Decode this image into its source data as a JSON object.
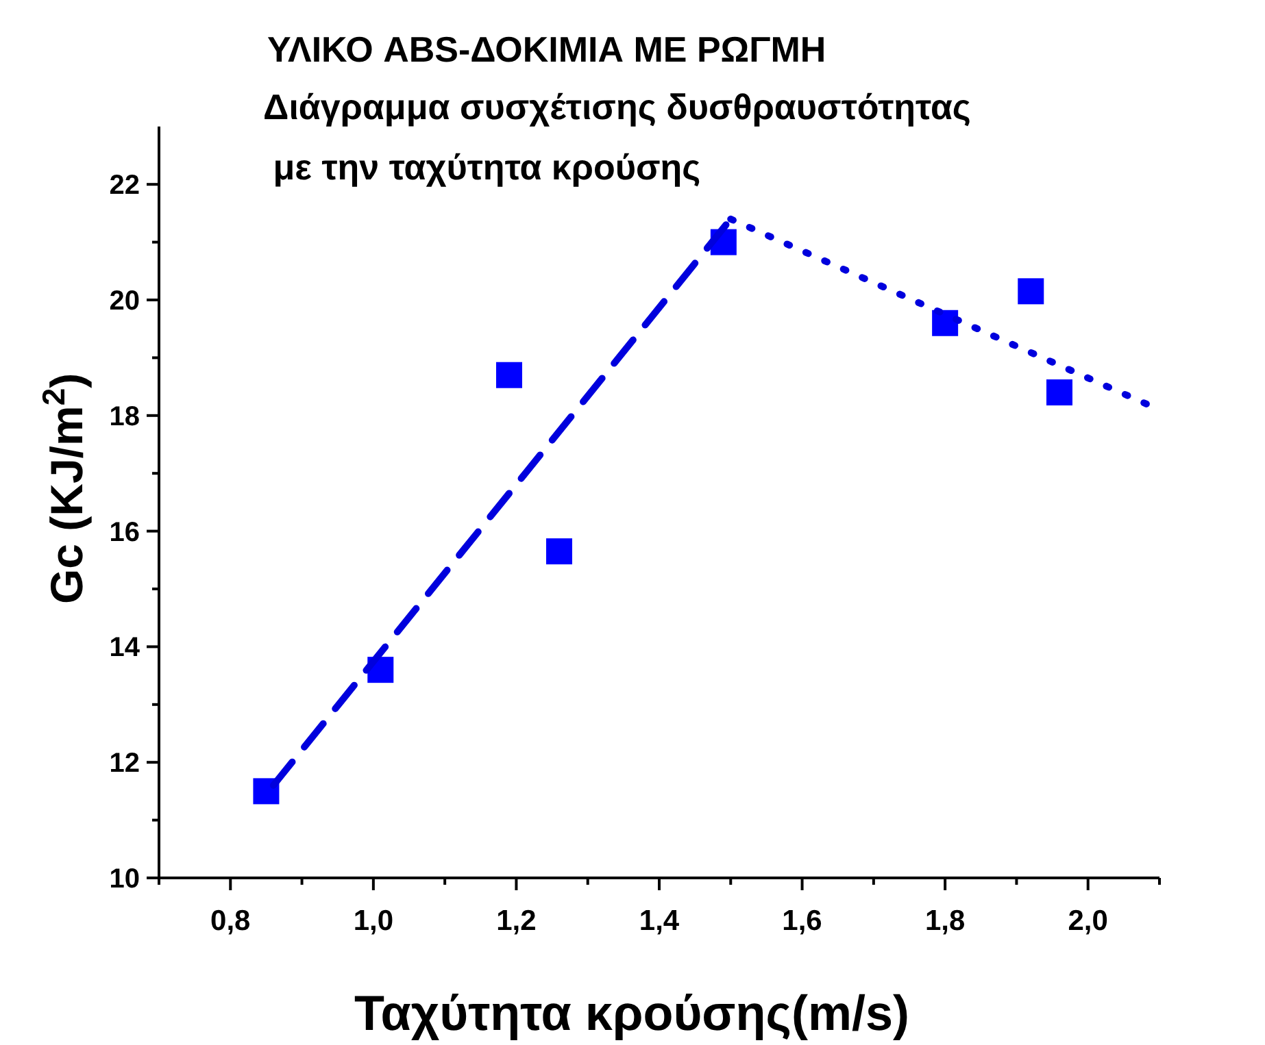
{
  "chart_data": {
    "type": "scatter",
    "title": "ΥΛΙΚΟ ABS-ΔΟΚΙΜΙΑ ΜΕ ΡΩΓΜΗ",
    "subtitle": "Διάγραμμα συσχέτισης δυσθραυστότητας\n με την ταχύτητα κρούσης",
    "xlabel": "Ταχύτητα κρούσης(m/s)",
    "ylabel": "Gc (KJ/m$^{2}$)",
    "xlim": [
      0.7,
      2.1
    ],
    "ylim": [
      10,
      23
    ],
    "xticks": [
      {
        "value": 0.7,
        "label": null
      },
      {
        "value": 0.8,
        "label": "0,8"
      },
      {
        "value": 0.9,
        "label": null
      },
      {
        "value": 1.0,
        "label": "1,0"
      },
      {
        "value": 1.1,
        "label": null
      },
      {
        "value": 1.2,
        "label": "1,2"
      },
      {
        "value": 1.3,
        "label": null
      },
      {
        "value": 1.4,
        "label": "1,4"
      },
      {
        "value": 1.5,
        "label": null
      },
      {
        "value": 1.6,
        "label": "1,6"
      },
      {
        "value": 1.7,
        "label": null
      },
      {
        "value": 1.8,
        "label": "1,8"
      },
      {
        "value": 1.9,
        "label": null
      },
      {
        "value": 2.0,
        "label": "2,0"
      },
      {
        "value": 2.1,
        "label": null
      }
    ],
    "yticks": [
      10,
      {
        "value": 11,
        "label": null
      },
      12,
      {
        "value": 13,
        "label": null
      },
      14,
      {
        "value": 15,
        "label": null
      },
      16,
      {
        "value": 17,
        "label": null
      },
      18,
      {
        "value": 19,
        "label": null
      },
      20,
      {
        "value": 21,
        "label": null
      },
      22
    ],
    "grid": false,
    "series": [
      {
        "color": "#0000ff",
        "marker": "square",
        "x": [
          0.85,
          1.01,
          1.19,
          1.26,
          1.49,
          1.8,
          1.92,
          1.96
        ],
        "values": [
          11.5,
          13.6,
          18.7,
          15.65,
          21.0,
          19.6,
          20.15,
          18.4
        ]
      },
      {
        "type": "line",
        "color": "#0000dd",
        "line_style": "dashed",
        "marker": "none",
        "x": [
          0.86,
          1.5
        ],
        "values": [
          11.6,
          21.4
        ]
      },
      {
        "type": "line",
        "color": "#0000dd",
        "line_style": "dotted",
        "marker": "none",
        "x": [
          1.5,
          2.1
        ],
        "values": [
          21.4,
          18.1
        ]
      }
    ]
  }
}
